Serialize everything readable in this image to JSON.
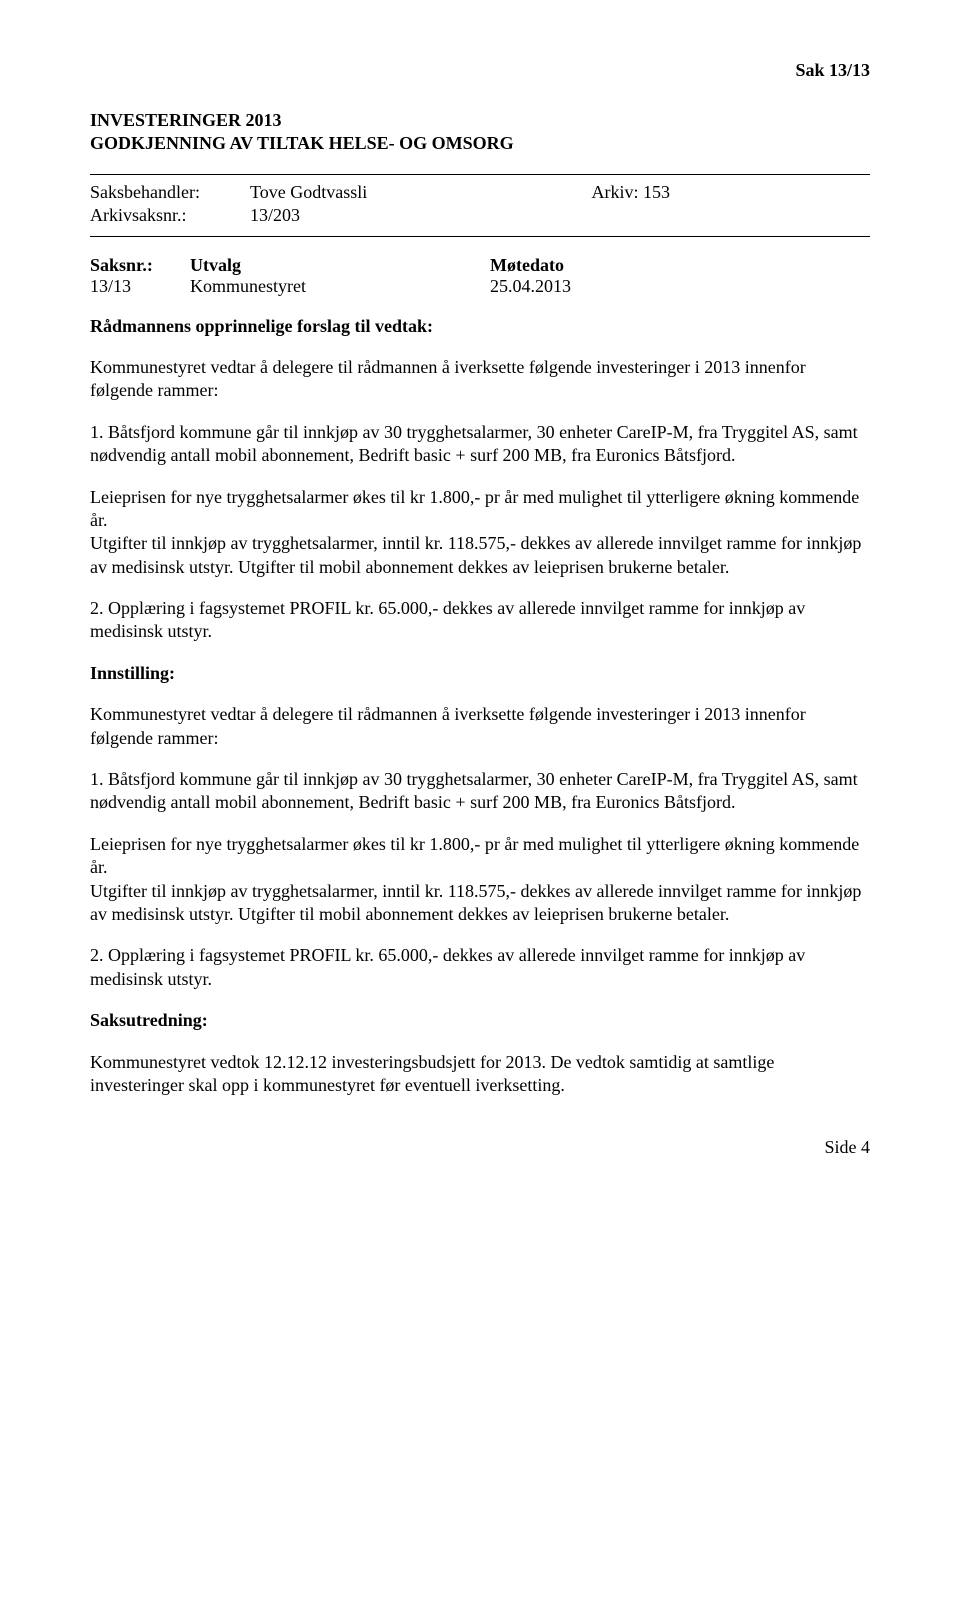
{
  "header": {
    "sak_ref": "Sak  13/13"
  },
  "title": {
    "line1": "INVESTERINGER 2013",
    "line2": "GODKJENNING AV TILTAK HELSE- OG OMSORG"
  },
  "meta": {
    "saksbehandler_label": "Saksbehandler:",
    "saksbehandler_value": "Tove Godtvassli",
    "arkiv_label": "Arkiv: 153",
    "arkivsaksnr_label": "Arkivsaksnr.:",
    "arkivsaksnr_value": "13/203"
  },
  "utvalg": {
    "h1": "Saksnr.:",
    "h2": "Utvalg",
    "h3": "Møtedato",
    "r1": "13/13",
    "r2": "Kommunestyret",
    "r3": "25.04.2013"
  },
  "sections": {
    "radmannens_head": "Rådmannens opprinnelige forslag til vedtak:",
    "intro": "Kommunestyret vedtar å delegere til rådmannen å iverksette følgende investeringer i 2013 innenfor følgende rammer:",
    "p1": "1. Båtsfjord kommune går til innkjøp av 30 trygghetsalarmer, 30 enheter CareIP-M, fra Tryggitel AS, samt nødvendig antall mobil abonnement, Bedrift basic + surf 200 MB, fra Euronics Båtsfjord.",
    "p2": "Leieprisen for nye trygghetsalarmer økes til kr 1.800,- pr år med mulighet til ytterligere økning kommende år.",
    "p3": "Utgifter til innkjøp av trygghetsalarmer, inntil kr. 118.575,- dekkes av allerede innvilget ramme for innkjøp av medisinsk utstyr. Utgifter til mobil abonnement dekkes av leieprisen brukerne betaler.",
    "p4": "2. Opplæring i fagsystemet PROFIL kr. 65.000,- dekkes av allerede innvilget ramme for innkjøp av medisinsk utstyr.",
    "innstilling_head": "Innstilling:",
    "saksutredning_head": "Saksutredning:",
    "saksutredning_p": "Kommunestyret vedtok 12.12.12 investeringsbudsjett for 2013. De vedtok samtidig at samtlige investeringer skal opp i kommunestyret før eventuell iverksetting."
  },
  "footer": {
    "page": "Side 4"
  }
}
